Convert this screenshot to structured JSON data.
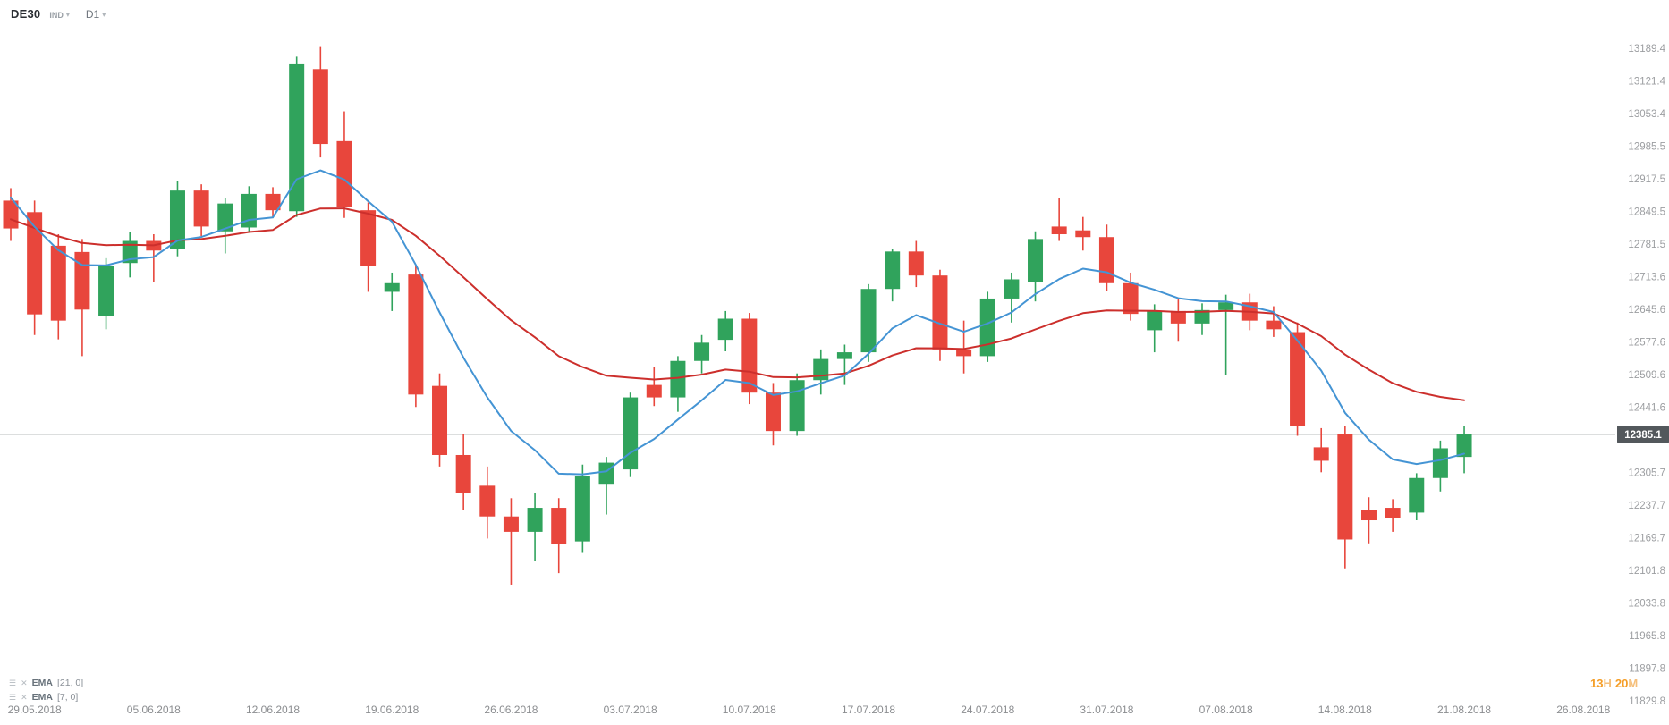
{
  "header": {
    "symbol": "DE30",
    "instrument_type": "IND",
    "timeframe": "D1"
  },
  "indicators": [
    {
      "label": "EMA",
      "params": "[21, 0]"
    },
    {
      "label": "EMA",
      "params": "[7, 0]"
    }
  ],
  "countdown": {
    "hours": "13",
    "hours_suffix": "H",
    "minutes": "20",
    "minutes_suffix": "M"
  },
  "current_price": {
    "value": "12385.1",
    "line_color": "#a3a6a9",
    "badge_bg": "#53585c",
    "badge_text_color": "#ffffff"
  },
  "colors": {
    "bull": "#30a35c",
    "bear": "#e8463c",
    "ema_fast": "#4494d4",
    "ema_slow": "#cc2f2c",
    "price_axis_text": "#9c9ea1",
    "date_axis_text": "#8b8d90"
  },
  "chart_data": {
    "type": "candlestick",
    "title": "DE30 daily candlestick chart with EMA overlays",
    "symbol": "DE30",
    "timeframe": "D1",
    "grid": false,
    "legend_position": "bottom-left",
    "current_price": 12385.1,
    "y_axis": {
      "min": 11829.8,
      "max": 13189.4,
      "tick_step": 68.0,
      "labels": [
        "13189.4",
        "13121.4",
        "13053.4",
        "12985.5",
        "12917.5",
        "12849.5",
        "12781.5",
        "12713.6",
        "12645.6",
        "12577.6",
        "12509.6",
        "12441.6",
        "12305.7",
        "12237.7",
        "12169.7",
        "12101.8",
        "12033.8",
        "11965.8",
        "11897.8",
        "11829.8"
      ]
    },
    "x_axis": {
      "labels": [
        {
          "text": "29.05.2018",
          "candle_index": 1
        },
        {
          "text": "05.06.2018",
          "candle_index": 6
        },
        {
          "text": "12.06.2018",
          "candle_index": 11
        },
        {
          "text": "19.06.2018",
          "candle_index": 16
        },
        {
          "text": "26.06.2018",
          "candle_index": 21
        },
        {
          "text": "03.07.2018",
          "candle_index": 26
        },
        {
          "text": "10.07.2018",
          "candle_index": 31
        },
        {
          "text": "17.07.2018",
          "candle_index": 36
        },
        {
          "text": "24.07.2018",
          "candle_index": 41
        },
        {
          "text": "31.07.2018",
          "candle_index": 46
        },
        {
          "text": "07.08.2018",
          "candle_index": 51
        },
        {
          "text": "14.08.2018",
          "candle_index": 56
        },
        {
          "text": "21.08.2018",
          "candle_index": 61
        },
        {
          "text": "26.08.2018",
          "candle_index": 66
        }
      ]
    },
    "overlays": [
      {
        "name": "EMA",
        "period": 21,
        "offset": 0,
        "color": "#cc2f2c",
        "seed": 12835
      },
      {
        "name": "EMA",
        "period": 7,
        "offset": 0,
        "color": "#4494d4",
        "seed": 12900
      }
    ],
    "candle_columns": [
      "date",
      "open",
      "high",
      "low",
      "close"
    ],
    "candles": [
      [
        "28.05.2018",
        12872,
        12898,
        12788,
        12814
      ],
      [
        "29.05.2018",
        12848,
        12872,
        12592,
        12635
      ],
      [
        "30.05.2018",
        12778,
        12802,
        12583,
        12622
      ],
      [
        "31.05.2018",
        12765,
        12792,
        12548,
        12645
      ],
      [
        "01.06.2018",
        12632,
        12752,
        12604,
        12735
      ],
      [
        "04.06.2018",
        12742,
        12806,
        12712,
        12788
      ],
      [
        "05.06.2018",
        12788,
        12802,
        12702,
        12768
      ],
      [
        "06.06.2018",
        12772,
        12912,
        12756,
        12893
      ],
      [
        "07.06.2018",
        12893,
        12906,
        12798,
        12818
      ],
      [
        "08.06.2018",
        12808,
        12878,
        12762,
        12866
      ],
      [
        "11.06.2018",
        12816,
        12902,
        12806,
        12886
      ],
      [
        "12.06.2018",
        12886,
        12900,
        12836,
        12852
      ],
      [
        "13.06.2018",
        12850,
        13172,
        12838,
        13156
      ],
      [
        "14.06.2018",
        13146,
        13192,
        12962,
        12990
      ],
      [
        "15.06.2018",
        12996,
        13058,
        12836,
        12858
      ],
      [
        "18.06.2018",
        12852,
        12868,
        12682,
        12736
      ],
      [
        "19.06.2018",
        12682,
        12722,
        12642,
        12700
      ],
      [
        "20.06.2018",
        12718,
        12736,
        12442,
        12468
      ],
      [
        "21.06.2018",
        12486,
        12512,
        12318,
        12342
      ],
      [
        "22.06.2018",
        12342,
        12386,
        12228,
        12262
      ],
      [
        "25.06.2018",
        12278,
        12318,
        12168,
        12214
      ],
      [
        "26.06.2018",
        12214,
        12252,
        12072,
        12182
      ],
      [
        "27.06.2018",
        12182,
        12262,
        12122,
        12232
      ],
      [
        "28.06.2018",
        12232,
        12252,
        12096,
        12156
      ],
      [
        "29.06.2018",
        12162,
        12322,
        12138,
        12298
      ],
      [
        "02.07.2018",
        12282,
        12338,
        12218,
        12326
      ],
      [
        "03.07.2018",
        12312,
        12472,
        12296,
        12462
      ],
      [
        "04.07.2018",
        12488,
        12526,
        12444,
        12462
      ],
      [
        "05.07.2018",
        12462,
        12548,
        12432,
        12538
      ],
      [
        "06.07.2018",
        12538,
        12592,
        12512,
        12576
      ],
      [
        "09.07.2018",
        12582,
        12642,
        12558,
        12626
      ],
      [
        "10.07.2018",
        12626,
        12638,
        12448,
        12472
      ],
      [
        "11.07.2018",
        12472,
        12492,
        12362,
        12392
      ],
      [
        "12.07.2018",
        12392,
        12512,
        12382,
        12498
      ],
      [
        "13.07.2018",
        12498,
        12562,
        12468,
        12542
      ],
      [
        "16.07.2018",
        12542,
        12572,
        12488,
        12556
      ],
      [
        "17.07.2018",
        12556,
        12698,
        12536,
        12688
      ],
      [
        "18.07.2018",
        12688,
        12772,
        12662,
        12766
      ],
      [
        "19.07.2018",
        12766,
        12788,
        12692,
        12716
      ],
      [
        "20.07.2018",
        12716,
        12728,
        12538,
        12562
      ],
      [
        "23.07.2018",
        12562,
        12622,
        12512,
        12548
      ],
      [
        "24.07.2018",
        12548,
        12682,
        12536,
        12668
      ],
      [
        "25.07.2018",
        12668,
        12722,
        12618,
        12708
      ],
      [
        "26.07.2018",
        12702,
        12808,
        12662,
        12792
      ],
      [
        "27.07.2018",
        12818,
        12878,
        12788,
        12802
      ],
      [
        "30.07.2018",
        12810,
        12838,
        12768,
        12796
      ],
      [
        "31.07.2018",
        12796,
        12822,
        12684,
        12700
      ],
      [
        "01.08.2018",
        12700,
        12722,
        12622,
        12636
      ],
      [
        "02.08.2018",
        12602,
        12656,
        12556,
        12642
      ],
      [
        "03.08.2018",
        12642,
        12666,
        12578,
        12616
      ],
      [
        "06.08.2018",
        12616,
        12658,
        12592,
        12644
      ],
      [
        "07.08.2018",
        12644,
        12676,
        12508,
        12660
      ],
      [
        "08.08.2018",
        12660,
        12678,
        12602,
        12622
      ],
      [
        "09.08.2018",
        12622,
        12652,
        12588,
        12604
      ],
      [
        "10.08.2018",
        12598,
        12618,
        12382,
        12402
      ],
      [
        "13.08.2018",
        12358,
        12398,
        12306,
        12330
      ],
      [
        "14.08.2018",
        12386,
        12402,
        12106,
        12166
      ],
      [
        "15.08.2018",
        12228,
        12254,
        12158,
        12206
      ],
      [
        "16.08.2018",
        12232,
        12250,
        12182,
        12210
      ],
      [
        "17.08.2018",
        12222,
        12304,
        12206,
        12294
      ],
      [
        "20.08.2018",
        12294,
        12372,
        12266,
        12356
      ],
      [
        "21.08.2018",
        12338,
        12402,
        12304,
        12385.1
      ]
    ]
  }
}
